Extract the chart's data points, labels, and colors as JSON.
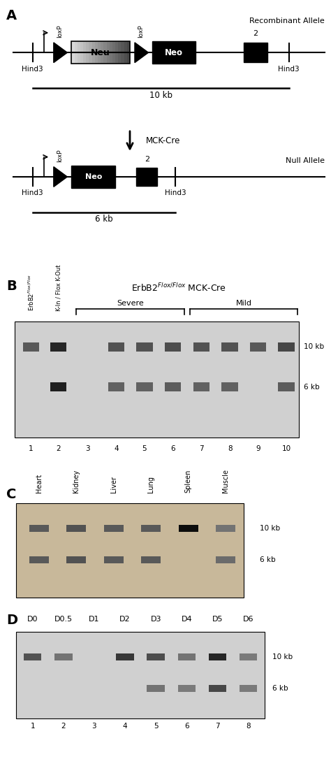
{
  "bg_color": "#ffffff",
  "panel_A": {
    "label": "A",
    "recombinant_label": "Recombinant Allele",
    "null_label": "Null Allele",
    "mck_cre_label": "MCK-Cre",
    "hind3": "Hind3",
    "10kb": "10 kb",
    "6kb": "6 kb"
  },
  "panel_B": {
    "label": "B",
    "col1_label": "ErbB2",
    "col1_super": "Flox / Flox",
    "col2_label": "K-In / Flox K-Out",
    "severe_label": "Severe",
    "mild_label": "Mild",
    "lane_nums": [
      "1",
      "2",
      "3",
      "4",
      "5",
      "6",
      "7",
      "8",
      "9",
      "10"
    ],
    "10kb": "10 kb",
    "6kb": "6 kb"
  },
  "panel_C": {
    "label": "C",
    "tissue_labels": [
      "Heart",
      "Kidney",
      "Liver",
      "Lung",
      "Spleen",
      "Muscle"
    ],
    "10kb": "10 kb",
    "6kb": "6 kb"
  },
  "panel_D": {
    "label": "D",
    "lane_labels": [
      "D0",
      "D0.5",
      "D1",
      "D2",
      "D3",
      "D4",
      "D5",
      "D6"
    ],
    "lane_nums": [
      "1",
      "2",
      "3",
      "4",
      "5",
      "6",
      "7",
      "8"
    ],
    "10kb": "10 kb",
    "6kb": "6 kb"
  }
}
